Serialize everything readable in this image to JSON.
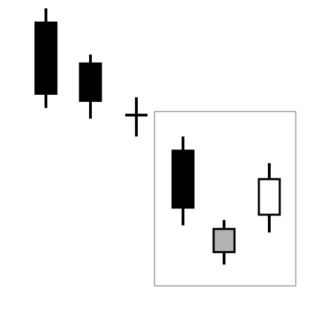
{
  "diagram": {
    "kind": "candlestick-pattern",
    "colors": {
      "background": "#ffffff",
      "bearish_fill": "#000000",
      "neutral_fill": "#b3b3b3",
      "bullish_fill": "#ffffff",
      "stroke": "#000000",
      "highlight_frame": "#808080"
    },
    "candles": [
      {
        "id": "candle-1",
        "style": "bearish",
        "high": 100,
        "open": 96,
        "close": 76,
        "low": 72
      },
      {
        "id": "candle-2",
        "style": "bearish",
        "high": 87,
        "open": 84.5,
        "close": 74,
        "low": 69
      },
      {
        "id": "candle-3",
        "style": "doji",
        "high": 75,
        "open": 70,
        "close": 70,
        "low": 64
      },
      {
        "id": "candle-4",
        "style": "bearish",
        "high": 64,
        "open": 60,
        "close": 44,
        "low": 39
      },
      {
        "id": "candle-5",
        "style": "neutral",
        "high": 40.5,
        "open": 38,
        "close": 31.5,
        "low": 28
      },
      {
        "id": "candle-6",
        "style": "bullish",
        "high": 56.5,
        "open": 42,
        "close": 52,
        "low": 37
      }
    ],
    "highlight": {
      "first_candle": "candle-4",
      "last_candle": "candle-6",
      "price_top": 71,
      "price_bottom": 22
    }
  }
}
